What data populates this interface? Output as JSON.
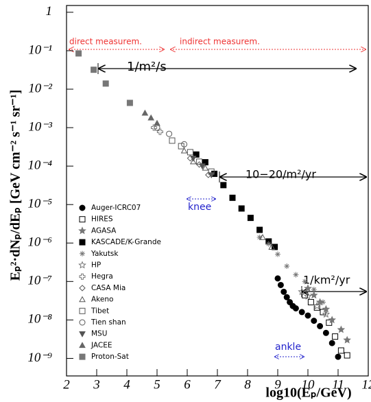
{
  "chart_data": {
    "type": "scatter",
    "xlabel": "log10(Eₚ/GeV)",
    "ylabel": "Eₚ²·dNₚ/dEₚ [GeV cm⁻² s⁻¹ sr⁻¹]",
    "xlim": [
      2,
      12
    ],
    "xticks": [
      2,
      3,
      4,
      5,
      6,
      7,
      8,
      9,
      10,
      11,
      12
    ],
    "ylim": [
      3.5e-10,
      1.5
    ],
    "ylog": true,
    "yticks": [
      1,
      {
        "value": 0.1,
        "label": "10⁻¹"
      },
      {
        "value": 0.01,
        "label": "10⁻²"
      },
      {
        "value": 0.001,
        "label": "10⁻³"
      },
      {
        "value": 0.0001,
        "label": "10⁻⁴"
      },
      {
        "value": 1e-05,
        "label": "10⁻⁵"
      },
      {
        "value": 1e-06,
        "label": "10⁻⁶"
      },
      {
        "value": 1e-07,
        "label": "10⁻⁷"
      },
      {
        "value": 1e-08,
        "label": "10⁻⁸"
      },
      {
        "value": 1e-09,
        "label": "10⁻⁹"
      }
    ],
    "annotations": [
      "direct measurem.",
      "indirect measurem.",
      "1/m²/s",
      "10−20/m²/yr",
      "1/km²/yr",
      "knee",
      "ankle"
    ],
    "series": [
      {
        "name": "Auger-ICRC07",
        "marker": "circle",
        "filled": true,
        "color": "#000000",
        "x": [
          9.0,
          9.1,
          9.2,
          9.3,
          9.4,
          9.5,
          9.6,
          9.8,
          10.0,
          10.2,
          10.4,
          10.6,
          10.8,
          11.0
        ],
        "values": [
          1.2e-07,
          8.1e-08,
          5.4e-08,
          3.9e-08,
          2.9e-08,
          2.3e-08,
          2e-08,
          1.6e-08,
          1.3e-08,
          9.5e-09,
          6.9e-09,
          4.6e-09,
          2.5e-09,
          1.1e-09
        ]
      },
      {
        "name": "HIRES",
        "marker": "square",
        "filled": false,
        "color": "#000000",
        "x": [
          9.9,
          10.1,
          10.3,
          10.5,
          10.7,
          10.9,
          11.1,
          11.3
        ],
        "values": [
          4.4e-08,
          2.9e-08,
          2.1e-08,
          1.6e-08,
          8.5e-09,
          3.7e-09,
          1.6e-09,
          1.2e-09
        ]
      },
      {
        "name": "AGASA",
        "marker": "star",
        "filled": true,
        "color": "#777777",
        "x": [
          10.0,
          10.2,
          10.4,
          10.6,
          10.8,
          11.1,
          11.3
        ],
        "values": [
          6.6e-08,
          4.4e-08,
          2.9e-08,
          1.9e-08,
          1e-08,
          5.6e-09,
          3e-09
        ]
      },
      {
        "name": "KASCADE/K-Grande",
        "marker": "square",
        "filled": true,
        "color": "#000000",
        "x": [
          6.3,
          6.6,
          6.9,
          7.2,
          7.5,
          7.8,
          8.1,
          8.4,
          8.7,
          8.9
        ],
        "values": [
          0.0002,
          0.000126,
          6.3e-05,
          3.2e-05,
          1.5e-05,
          7.9e-06,
          4.5e-06,
          2.2e-06,
          1.1e-06,
          7.9e-07
        ]
      },
      {
        "name": "Yakutsk",
        "marker": "asterisk",
        "filled": false,
        "color": "#777777",
        "x": [
          8.4,
          8.7,
          9.0,
          9.3,
          9.6,
          9.9,
          10.2,
          10.5
        ],
        "values": [
          1.4e-06,
          9.5e-07,
          5.1e-07,
          2.5e-07,
          1.5e-07,
          1e-07,
          6.2e-08,
          2.9e-08
        ]
      },
      {
        "name": "HP",
        "marker": "star",
        "filled": false,
        "color": "#777777",
        "x": [
          9.8,
          10.0,
          10.3,
          10.6
        ],
        "values": [
          5.4e-08,
          4.1e-08,
          2.3e-08,
          1.4e-08
        ]
      },
      {
        "name": "Hegra",
        "marker": "cross",
        "filled": false,
        "color": "#777777",
        "x": [
          4.9,
          5.1
        ],
        "values": [
          0.001,
          0.00078
        ]
      },
      {
        "name": "CASA Mia",
        "marker": "diamond",
        "filled": false,
        "color": "#555555",
        "x": [
          6.1,
          6.4,
          6.7
        ],
        "values": [
          0.00016,
          0.00011,
          5.9e-05
        ]
      },
      {
        "name": "Akeno",
        "marker": "triangle",
        "filled": false,
        "color": "#555555",
        "x": [
          5.9,
          6.2,
          6.6,
          8.5,
          8.8
        ],
        "values": [
          0.00025,
          0.00013,
          8.9e-05,
          1.4e-06,
          7.8e-07
        ]
      },
      {
        "name": "Tibet",
        "marker": "square",
        "filled": false,
        "color": "#555555",
        "x": [
          5.5,
          5.8,
          6.1,
          6.4,
          6.8
        ],
        "values": [
          0.00046,
          0.00033,
          0.00023,
          0.00013,
          7.2e-05
        ]
      },
      {
        "name": "Tien shan",
        "marker": "circle",
        "filled": false,
        "color": "#555555",
        "x": [
          5.0,
          5.4,
          5.9
        ],
        "values": [
          0.001,
          0.00069,
          0.00037
        ]
      },
      {
        "name": "MSU",
        "marker": "triangle-down",
        "filled": true,
        "color": "#555555",
        "x": [
          6.2,
          6.5,
          6.8
        ],
        "values": [
          0.00016,
          0.0001,
          5.9e-05
        ]
      },
      {
        "name": "JACEE",
        "marker": "triangle",
        "filled": true,
        "color": "#666666",
        "x": [
          4.6,
          4.8,
          5.0
        ],
        "values": [
          0.0024,
          0.0018,
          0.0013
        ]
      },
      {
        "name": "Proton-Sat",
        "marker": "square",
        "filled": true,
        "color": "#777777",
        "x": [
          2.4,
          2.9,
          3.3,
          4.1
        ],
        "values": [
          0.085,
          0.032,
          0.014,
          0.0044
        ]
      }
    ]
  }
}
